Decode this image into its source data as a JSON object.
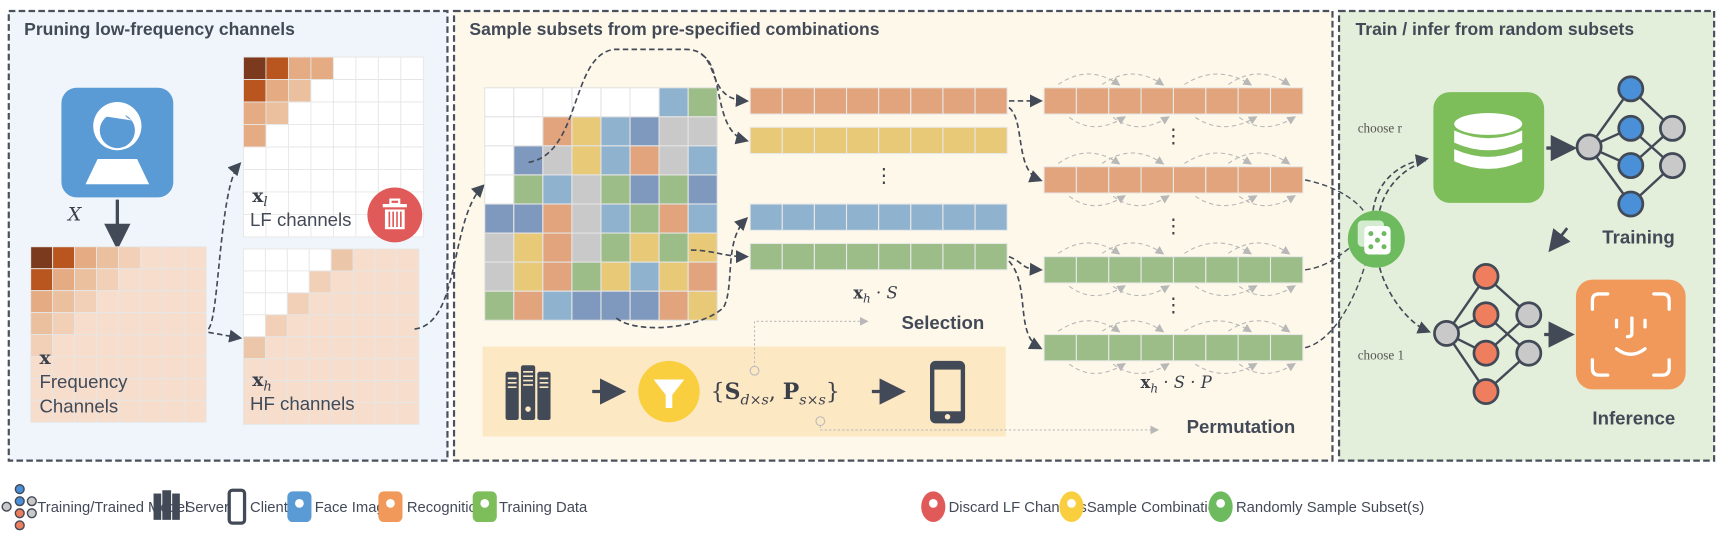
{
  "panels": {
    "pruning": {
      "title": "Pruning low-frequency channels",
      "bg": "#EFF5FA"
    },
    "sampling": {
      "title": "Sample subsets from pre-specified combinations",
      "bg": "#FEF8EA"
    },
    "train_infer": {
      "title": "Train / infer from random subsets",
      "bg": "#E3EFDA"
    }
  },
  "pruning": {
    "input_var": "X",
    "freq_var": "x",
    "freq_label_1": "Frequency",
    "freq_label_2": "Channels",
    "lf_var": "x",
    "lf_sub": "l",
    "lf_label": "LF channels",
    "hf_var": "x",
    "hf_sub": "h",
    "hf_label": "HF channels"
  },
  "sampling": {
    "selection_matrix": [
      "WWWWWWBG",
      "WWOYBDRR",
      "WDRYBORB",
      "WGBRGDGD",
      "DDORBGOB",
      "RYORGYGY",
      "RYOGYBYO",
      "GOBDDDOY"
    ],
    "selected_rows": [
      "O",
      "Y",
      "B",
      "G"
    ],
    "permuted_rows": [
      "O",
      "O",
      "G",
      "G"
    ],
    "selection_var": "x",
    "selection_sub": "h",
    "selection_rest": " · S",
    "selection_label": "Selection",
    "perm_var": "x",
    "perm_sub": "h",
    "perm_rest": " · S · P",
    "perm_label": "Permutation",
    "combo_open": "{",
    "combo_S": "S",
    "combo_S_sub": "d×s",
    "combo_sep": ", ",
    "combo_P": "P",
    "combo_P_sub": "s×s",
    "combo_close": "}",
    "ellipsis": "⋮"
  },
  "train_infer": {
    "choose_r": "choose r",
    "choose_1": "choose 1",
    "training_label": "Training",
    "inference_label": "Inference"
  },
  "legend": [
    {
      "icon": "neural-network-icon",
      "label": "Training/Trained Model"
    },
    {
      "icon": "server-icon",
      "label": "Server"
    },
    {
      "icon": "phone-icon",
      "label": "Client"
    },
    {
      "icon": "face-image-icon",
      "label": "Face Image"
    },
    {
      "icon": "face-recognition-icon",
      "label": "Recognition"
    },
    {
      "icon": "database-icon",
      "label": "Training Data"
    },
    {
      "icon": "trash-icon",
      "label": "Discard LF Channels"
    },
    {
      "icon": "funnel-icon",
      "label": "Sample Combinations"
    },
    {
      "icon": "dice-icon",
      "label": "Randomly Sample Subset(s)"
    }
  ],
  "colors": {
    "O": "#E2A47C",
    "Y": "#E8C977",
    "B": "#8FB2CE",
    "D": "#7F99BE",
    "G": "#9CBD88",
    "R": "#C9C9C9",
    "W": "#FFFFFF",
    "face_blue": "#5B9BD5",
    "recog_orange": "#F0995A",
    "data_green": "#7DBD5A",
    "trash_red": "#E05A5A",
    "funnel_yellow": "#F9CF3F",
    "dice_green": "#6DBB5E",
    "ink": "#434a57"
  }
}
